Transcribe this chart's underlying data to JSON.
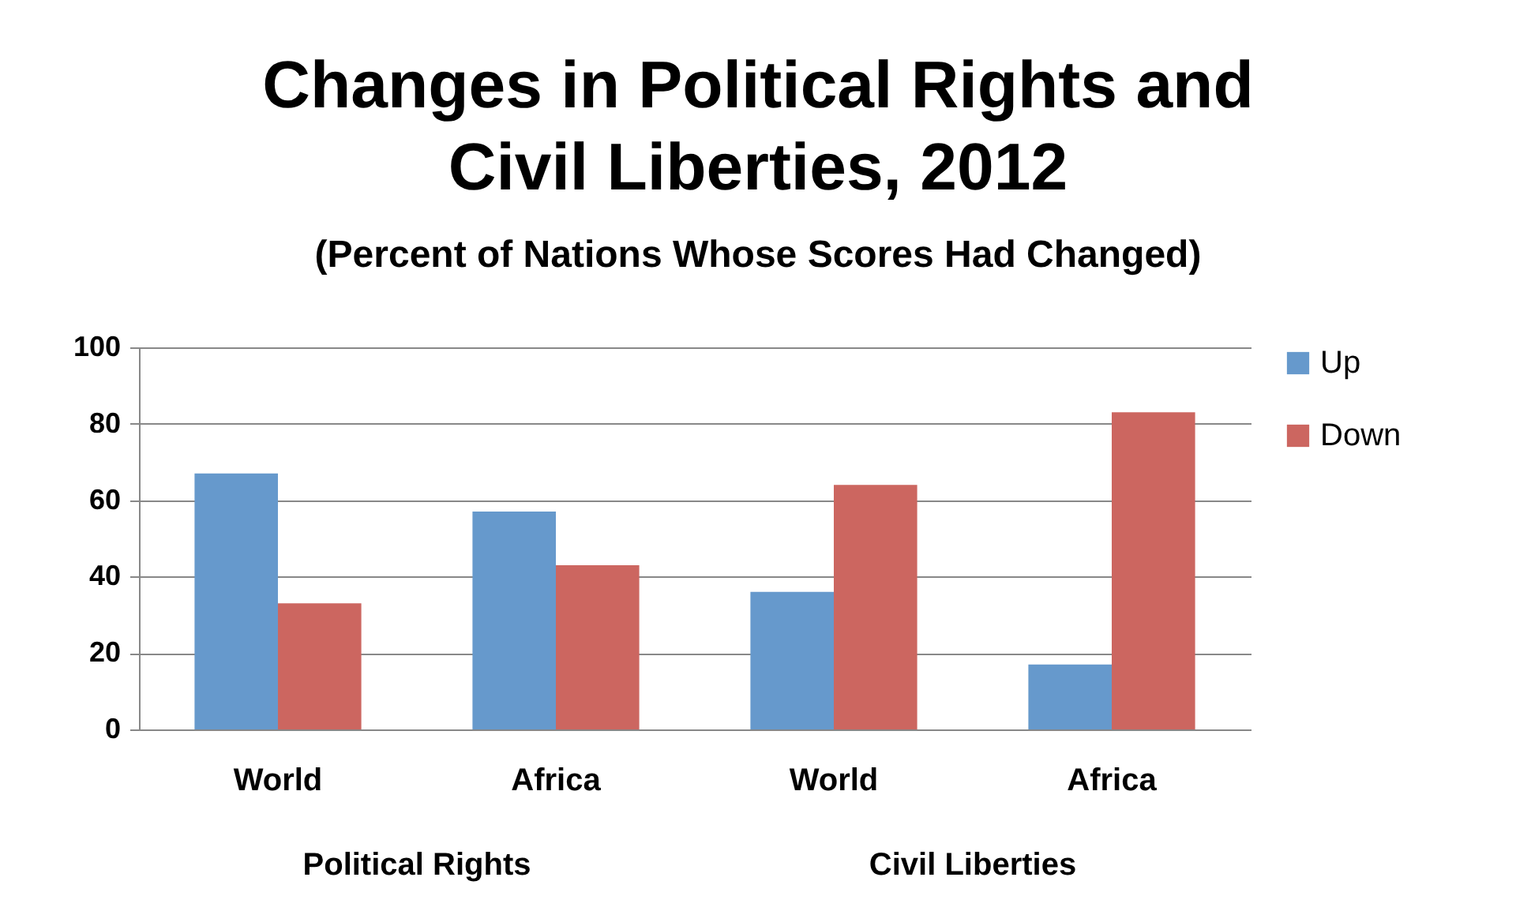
{
  "chart_data": {
    "type": "bar",
    "title": "Changes in Political Rights and Civil Liberties, 2012",
    "subtitle": "(Percent of Nations Whose Scores Had Changed)",
    "categories": [
      "World",
      "Africa",
      "World",
      "Africa"
    ],
    "series": [
      {
        "name": "Up",
        "color": "#6699cc",
        "values": [
          67,
          57,
          36,
          17
        ]
      },
      {
        "name": "Down",
        "color": "#cc6660",
        "values": [
          33,
          43,
          64,
          83
        ]
      }
    ],
    "annotations": [
      "Political Rights",
      "Civil Liberties"
    ],
    "ylim": [
      0,
      100
    ],
    "yticks": [
      0,
      20,
      40,
      60,
      80,
      100
    ],
    "grid": "y",
    "legend": "right"
  }
}
